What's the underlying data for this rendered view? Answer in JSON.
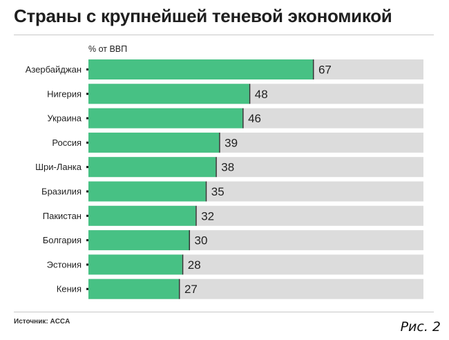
{
  "header": {
    "title": "Страны с крупнейшей теневой экономикой",
    "unit": "% от ВВП"
  },
  "footer": {
    "source": "Источник: ACCA",
    "figure_label": "Рис. 2"
  },
  "colors": {
    "bar": "#47c184",
    "track": "#dcdcdc",
    "divider": "#333333"
  },
  "chart_data": {
    "type": "bar",
    "orientation": "horizontal",
    "title": "Страны с крупнейшей теневой экономикой",
    "ylabel": "% от ВВП",
    "categories": [
      "Азербайджан",
      "Нигерия",
      "Украина",
      "Россия",
      "Шри-Ланка",
      "Бразилия",
      "Пакистан",
      "Болгария",
      "Эстония",
      "Кения"
    ],
    "values": [
      67,
      48,
      46,
      39,
      38,
      35,
      32,
      30,
      28,
      27
    ],
    "xlim": [
      0,
      100
    ],
    "grid": false,
    "legend": false
  }
}
